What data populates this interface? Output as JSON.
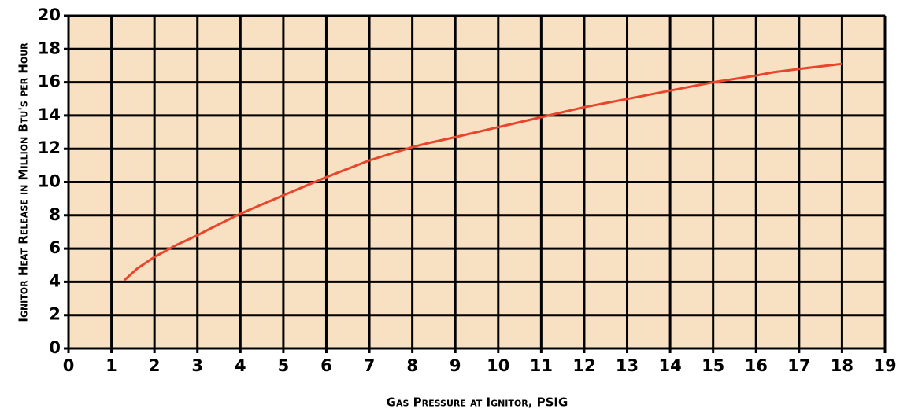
{
  "chart_data": {
    "type": "line",
    "x_label": "Gas Pressure at Ignitor, PSIG",
    "y_label": "Ignitor Heat Release in Million Btu's per Hour",
    "x": [
      1.3,
      1.6,
      2,
      2.5,
      3,
      3.3,
      4,
      5,
      6,
      7,
      7.5,
      8,
      8.3,
      9,
      10,
      11,
      12,
      13,
      14,
      15,
      16,
      16.4,
      17,
      18
    ],
    "y": [
      4.1,
      4.8,
      5.5,
      6.2,
      6.8,
      7.2,
      8.1,
      9.2,
      10.3,
      11.3,
      11.7,
      12.1,
      12.3,
      12.7,
      13.3,
      13.9,
      14.5,
      15.0,
      15.5,
      16.0,
      16.4,
      16.6,
      16.8,
      17.1
    ],
    "color": "#e8452c",
    "xlim": [
      0,
      19
    ],
    "ylim": [
      0,
      20
    ],
    "xticks": [
      0,
      1,
      2,
      3,
      4,
      5,
      6,
      7,
      8,
      9,
      10,
      11,
      12,
      13,
      14,
      15,
      16,
      17,
      18,
      19
    ],
    "yticks": [
      0,
      2,
      4,
      6,
      8,
      10,
      12,
      14,
      16,
      18,
      20
    ],
    "grid": true,
    "background": "#f8e0c2"
  }
}
